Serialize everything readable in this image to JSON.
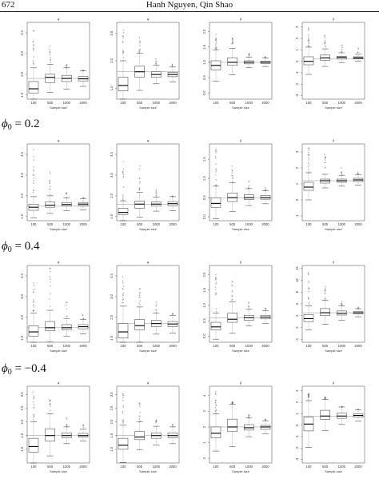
{
  "header": {
    "page_number": "672",
    "authors": "Hanh Nguyen, Qin Shao"
  },
  "phi_labels": [
    {
      "symbol": "ϕ",
      "subscript": "0",
      "rest": " = 0.2"
    },
    {
      "symbol": "ϕ",
      "subscript": "0",
      "rest": " = 0.4"
    },
    {
      "symbol": "ϕ",
      "subscript": "0",
      "rest": " = −0.4"
    }
  ],
  "x_axis": {
    "label": "Sample size",
    "label_alt": "Sample size",
    "categories": [
      "100",
      "500",
      "1000",
      "2000"
    ]
  },
  "chart_data": {
    "type": "boxplot",
    "description_rows": 4,
    "description_cols": 4,
    "panels": [
      {
        "row": 0,
        "col": 0,
        "title": "φ",
        "yticks": [
          "1.0",
          "2.0",
          "3.0",
          "4.0"
        ],
        "ylim": [
          0.8,
          4.5
        ],
        "ref": 1.8,
        "medians": [
          1.3,
          1.85,
          1.8,
          1.78
        ],
        "q1": [
          1.1,
          1.6,
          1.65,
          1.68
        ],
        "q3": [
          1.65,
          2.0,
          1.95,
          1.9
        ],
        "outlier_max": [
          4.2,
          3.8,
          2.5,
          2.2
        ]
      },
      {
        "row": 0,
        "col": 1,
        "title": "φ",
        "yticks": [
          "1.0",
          "2.0",
          "3.0"
        ],
        "ylim": [
          0.6,
          3.4
        ],
        "ref": 1.6,
        "medians": [
          1.1,
          1.6,
          1.5,
          1.5
        ],
        "q1": [
          0.9,
          1.4,
          1.4,
          1.42
        ],
        "q3": [
          1.4,
          1.8,
          1.6,
          1.58
        ],
        "outlier_max": [
          3.2,
          2.9,
          2.1,
          1.9
        ]
      },
      {
        "row": 0,
        "col": 2,
        "title": "β",
        "yticks": [
          "0.0",
          "0.5",
          "1.0",
          "1.5",
          "2.0"
        ],
        "ylim": [
          -0.2,
          2.3
        ],
        "ref": 1.0,
        "medians": [
          0.9,
          1.0,
          1.0,
          1.0
        ],
        "q1": [
          0.75,
          0.9,
          0.95,
          0.96
        ],
        "q3": [
          1.05,
          1.15,
          1.05,
          1.04
        ],
        "outlier_max": [
          2.1,
          1.8,
          1.3,
          1.2
        ]
      },
      {
        "row": 0,
        "col": 3,
        "title": "β",
        "yticks": [
          "-3",
          "-2",
          "-1",
          "0",
          "1",
          "2",
          "3"
        ],
        "ylim": [
          -3.3,
          3.4
        ],
        "ref": 0.2,
        "medians": [
          0.0,
          0.3,
          0.35,
          0.3
        ],
        "q1": [
          -0.3,
          0.1,
          0.2,
          0.22
        ],
        "q3": [
          0.4,
          0.55,
          0.45,
          0.4
        ],
        "outlier_max": [
          3.0,
          2.4,
          1.5,
          1.2
        ]
      },
      {
        "row": 1,
        "col": 0,
        "title": "φ",
        "yticks": [
          "1.0",
          "2.0",
          "3.0",
          "4.0"
        ],
        "ylim": [
          0.8,
          4.5
        ],
        "ref": 1.5,
        "medians": [
          1.45,
          1.55,
          1.58,
          1.6
        ],
        "q1": [
          1.3,
          1.45,
          1.5,
          1.52
        ],
        "q3": [
          1.6,
          1.7,
          1.68,
          1.68
        ],
        "outlier_max": [
          4.3,
          3.3,
          2.3,
          1.9
        ]
      },
      {
        "row": 1,
        "col": 1,
        "title": "φ",
        "yticks": [
          "1.0",
          "2.0",
          "3.0",
          "4.0"
        ],
        "ylim": [
          0.8,
          4.5
        ],
        "ref": 1.6,
        "medians": [
          1.2,
          1.6,
          1.6,
          1.62
        ],
        "q1": [
          1.1,
          1.4,
          1.5,
          1.52
        ],
        "q3": [
          1.4,
          1.75,
          1.7,
          1.72
        ],
        "outlier_max": [
          4.0,
          3.6,
          2.4,
          2.0
        ]
      },
      {
        "row": 1,
        "col": 2,
        "title": "β",
        "yticks": [
          "0.0",
          "0.5",
          "1.0",
          "1.5"
        ],
        "ylim": [
          -0.1,
          1.9
        ],
        "ref": 0.5,
        "medians": [
          0.35,
          0.5,
          0.5,
          0.5
        ],
        "q1": [
          0.25,
          0.4,
          0.45,
          0.46
        ],
        "q3": [
          0.5,
          0.62,
          0.58,
          0.56
        ],
        "outlier_max": [
          1.8,
          1.4,
          1.0,
          0.8
        ]
      },
      {
        "row": 1,
        "col": 3,
        "title": "β",
        "yticks": [
          "-1",
          "0",
          "1",
          "2",
          "3"
        ],
        "ylim": [
          -1.3,
          3.5
        ],
        "ref": 1.2,
        "medians": [
          0.8,
          1.2,
          1.2,
          1.25
        ],
        "q1": [
          0.6,
          1.05,
          1.1,
          1.15
        ],
        "q3": [
          1.1,
          1.3,
          1.3,
          1.35
        ],
        "outlier_max": [
          3.3,
          2.9,
          2.0,
          1.8
        ]
      },
      {
        "row": 2,
        "col": 0,
        "title": "φ",
        "yticks": [
          "1.0",
          "2.0",
          "3.0",
          "4.0"
        ],
        "ylim": [
          0.8,
          4.5
        ],
        "ref": 1.5,
        "medians": [
          1.3,
          1.5,
          1.5,
          1.55
        ],
        "q1": [
          1.1,
          1.35,
          1.4,
          1.45
        ],
        "q3": [
          1.6,
          1.8,
          1.65,
          1.65
        ],
        "outlier_max": [
          3.8,
          4.4,
          2.9,
          2.2
        ]
      },
      {
        "row": 2,
        "col": 1,
        "title": "φ",
        "yticks": [
          "1.0",
          "2.0",
          "3.0",
          "4.0"
        ],
        "ylim": [
          0.8,
          4.5
        ],
        "ref": 1.7,
        "medians": [
          1.3,
          1.6,
          1.7,
          1.68
        ],
        "q1": [
          1.0,
          1.4,
          1.55,
          1.55
        ],
        "q3": [
          1.7,
          1.9,
          1.85,
          1.8
        ],
        "outlier_max": [
          4.0,
          3.6,
          2.8,
          2.2
        ]
      },
      {
        "row": 2,
        "col": 2,
        "title": "β",
        "yticks": [
          "0.0",
          "0.5",
          "1.0",
          "1.5",
          "2.0"
        ],
        "ylim": [
          -0.2,
          2.3
        ],
        "ref": 0.6,
        "medians": [
          0.3,
          0.55,
          0.6,
          0.62
        ],
        "q1": [
          0.2,
          0.45,
          0.52,
          0.56
        ],
        "q3": [
          0.45,
          0.75,
          0.68,
          0.68
        ],
        "outlier_max": [
          2.1,
          1.8,
          1.2,
          1.0
        ]
      },
      {
        "row": 2,
        "col": 3,
        "title": "β",
        "yticks": [
          "0",
          "2",
          "4",
          "6",
          "8",
          "10",
          "12"
        ],
        "ylim": [
          -0.5,
          12.5
        ],
        "ref": 4.5,
        "medians": [
          3.5,
          4.5,
          4.4,
          4.5
        ],
        "q1": [
          3.0,
          4.0,
          4.1,
          4.3
        ],
        "q3": [
          4.2,
          5.2,
          4.8,
          4.7
        ],
        "outlier_max": [
          11.5,
          9.0,
          6.5,
          5.5
        ]
      },
      {
        "row": 3,
        "col": 0,
        "title": "φ",
        "yticks": [
          "1.0",
          "1.5",
          "2.0",
          "2.5",
          "3.0"
        ],
        "ylim": [
          0.5,
          3.3
        ],
        "ref": 1.5,
        "medians": [
          1.1,
          1.5,
          1.5,
          1.5
        ],
        "q1": [
          0.9,
          1.3,
          1.42,
          1.45
        ],
        "q3": [
          1.4,
          1.75,
          1.6,
          1.58
        ],
        "outlier_max": [
          3.1,
          2.8,
          2.2,
          1.9
        ]
      },
      {
        "row": 3,
        "col": 1,
        "title": "φ",
        "yticks": [
          "1.0",
          "1.5",
          "2.0",
          "2.5",
          "3.0"
        ],
        "ylim": [
          0.5,
          3.3
        ],
        "ref": 1.5,
        "medians": [
          1.15,
          1.45,
          1.5,
          1.5
        ],
        "q1": [
          1.0,
          1.35,
          1.4,
          1.42
        ],
        "q3": [
          1.4,
          1.65,
          1.6,
          1.6
        ],
        "outlier_max": [
          3.1,
          2.7,
          2.1,
          1.9
        ]
      },
      {
        "row": 3,
        "col": 2,
        "title": "β",
        "yticks": [
          "0",
          "1",
          "2",
          "3",
          "4"
        ],
        "ylim": [
          -0.3,
          4.6
        ],
        "ref": 2.0,
        "medians": [
          1.6,
          2.0,
          1.95,
          2.0
        ],
        "q1": [
          1.3,
          1.7,
          1.8,
          1.85
        ],
        "q3": [
          2.0,
          2.5,
          2.15,
          2.1
        ],
        "outlier_max": [
          4.3,
          3.6,
          2.8,
          2.5
        ]
      },
      {
        "row": 3,
        "col": 3,
        "title": "β",
        "yticks": [
          "-3",
          "-2",
          "-1",
          "0",
          "1",
          "2",
          "3"
        ],
        "ylim": [
          -3.3,
          3.4
        ],
        "ref": 0.8,
        "medians": [
          0.1,
          0.8,
          0.8,
          0.85
        ],
        "q1": [
          -0.5,
          0.5,
          0.6,
          0.7
        ],
        "q3": [
          0.7,
          1.3,
          1.05,
          1.0
        ],
        "outlier_max": [
          2.8,
          2.5,
          1.6,
          1.3
        ]
      }
    ]
  }
}
